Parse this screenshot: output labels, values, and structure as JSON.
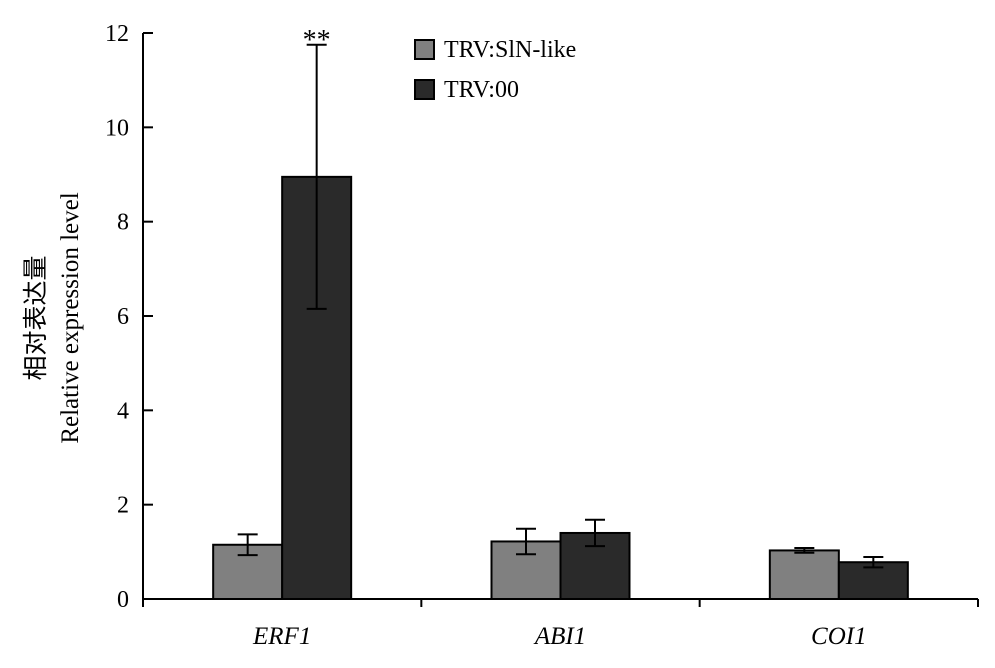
{
  "chart_data": {
    "type": "bar",
    "title": "",
    "ylabel_cn": "相对表达量",
    "ylabel": "Relative expression level",
    "xlabel": "",
    "categories": [
      "ERF1",
      "ABI1",
      "COI1"
    ],
    "ylim": [
      0,
      12
    ],
    "yticks": [
      "0",
      "2",
      "4",
      "6",
      "8",
      "10",
      "12"
    ],
    "legend_position": "top-center",
    "grid": false,
    "series": [
      {
        "name": "TRV:SlN-like",
        "color": "#808080",
        "values": [
          1.15,
          1.22,
          1.03
        ],
        "errors": [
          0.22,
          0.27,
          0.05
        ]
      },
      {
        "name": "TRV:00",
        "color": "#2a2a2a",
        "values": [
          8.95,
          1.4,
          0.78
        ],
        "errors": [
          2.8,
          0.28,
          0.11
        ]
      }
    ],
    "annotations": [
      {
        "text": "**",
        "category_index": 0,
        "series_index": 1
      }
    ]
  }
}
